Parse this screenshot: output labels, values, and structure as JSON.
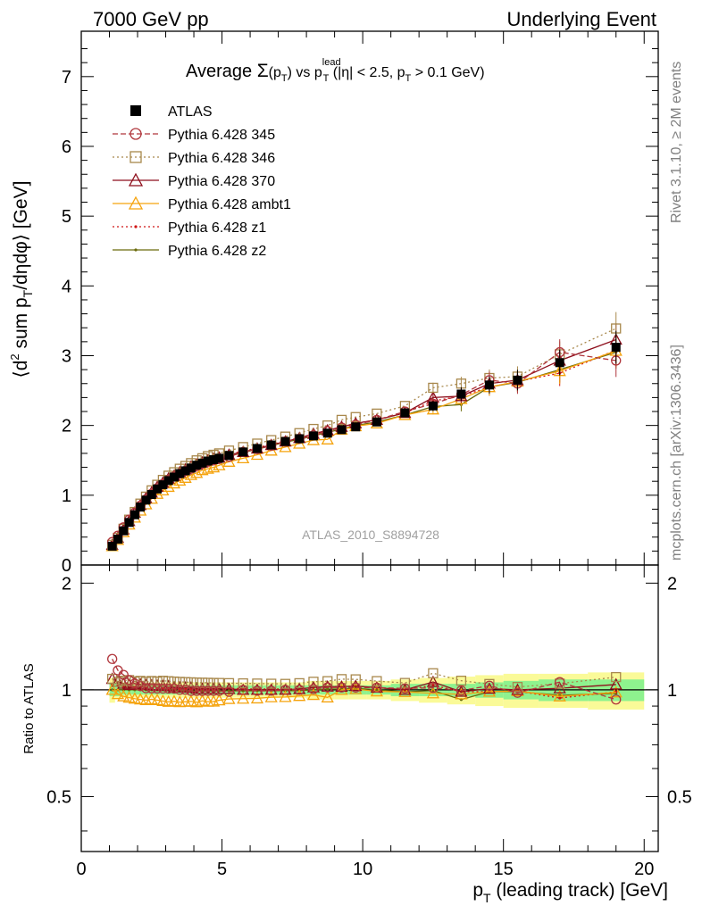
{
  "header": {
    "left": "7000 GeV pp",
    "right": "Underlying Event"
  },
  "side_labels": {
    "top": "Rivet 3.1.10, ≥ 2M events",
    "bottom": "mcplots.cern.ch [arXiv:1306.3436]"
  },
  "watermark": "ATLAS_2010_S8894728",
  "colors": {
    "band_inner": "#8ef28e",
    "band_outer": "#fafa98",
    "atlas": "#000000",
    "p345": "#b0363c",
    "p346": "#a8884c",
    "p370": "#8e0f1c",
    "ambt1": "#f5a30d",
    "z1": "#cf1414",
    "z2": "#6b6b0c"
  },
  "chart_data": [
    {
      "type": "line",
      "panel": "main",
      "title": "Average Σ(p_T) vs p_T^lead (|η| < 2.5, p_T > 0.1 GeV)",
      "xlabel": "p_T (leading track) [GeV]",
      "ylabel": "⟨d² sum p_T/dηdφ⟩ [GeV]",
      "xlim": [
        0,
        20.5
      ],
      "ylim": [
        0,
        7.65
      ],
      "xticks": [
        0,
        5,
        10,
        15,
        20
      ],
      "yticks": [
        0,
        1,
        2,
        3,
        4,
        5,
        6,
        7
      ],
      "legend": "top-left",
      "x": [
        1.1,
        1.3,
        1.5,
        1.7,
        1.9,
        2.1,
        2.3,
        2.5,
        2.7,
        2.9,
        3.1,
        3.3,
        3.5,
        3.7,
        3.9,
        4.1,
        4.3,
        4.5,
        4.7,
        4.9,
        5.25,
        5.75,
        6.25,
        6.75,
        7.25,
        7.75,
        8.25,
        8.75,
        9.25,
        9.75,
        10.5,
        11.5,
        12.5,
        13.5,
        14.5,
        15.5,
        17.0,
        19.0
      ],
      "series": [
        {
          "name": "ATLAS",
          "color": "atlas",
          "marker": "filled-square",
          "line": "none",
          "values": [
            0.27,
            0.37,
            0.49,
            0.61,
            0.72,
            0.83,
            0.93,
            1.01,
            1.09,
            1.15,
            1.21,
            1.26,
            1.31,
            1.35,
            1.39,
            1.43,
            1.46,
            1.49,
            1.51,
            1.53,
            1.57,
            1.62,
            1.67,
            1.72,
            1.77,
            1.81,
            1.85,
            1.89,
            1.94,
            1.98,
            2.05,
            2.18,
            2.28,
            2.45,
            2.58,
            2.65,
            2.9,
            3.12
          ]
        },
        {
          "name": "Pythia 6.428 345",
          "color": "p345",
          "marker": "open-circle",
          "line": "dashed",
          "values": [
            0.33,
            0.42,
            0.54,
            0.65,
            0.75,
            0.85,
            0.94,
            1.02,
            1.1,
            1.16,
            1.22,
            1.27,
            1.31,
            1.35,
            1.38,
            1.42,
            1.45,
            1.48,
            1.5,
            1.52,
            1.55,
            1.62,
            1.66,
            1.71,
            1.77,
            1.81,
            1.86,
            1.92,
            1.97,
            2.01,
            2.08,
            2.2,
            2.31,
            2.44,
            2.65,
            2.6,
            3.05,
            2.93
          ]
        },
        {
          "name": "Pythia 6.428 346",
          "color": "p346",
          "marker": "open-square",
          "line": "dotted",
          "values": [
            0.29,
            0.39,
            0.52,
            0.65,
            0.76,
            0.88,
            0.98,
            1.07,
            1.15,
            1.22,
            1.28,
            1.33,
            1.38,
            1.42,
            1.46,
            1.5,
            1.53,
            1.56,
            1.58,
            1.6,
            1.64,
            1.69,
            1.74,
            1.79,
            1.84,
            1.89,
            1.95,
            2.0,
            2.08,
            2.12,
            2.17,
            2.28,
            2.54,
            2.6,
            2.68,
            2.7,
            3.02,
            3.39
          ]
        },
        {
          "name": "Pythia 6.428 370",
          "color": "p370",
          "marker": "open-triangle",
          "line": "solid",
          "values": [
            0.29,
            0.39,
            0.51,
            0.63,
            0.75,
            0.86,
            0.96,
            1.04,
            1.12,
            1.18,
            1.24,
            1.28,
            1.33,
            1.37,
            1.41,
            1.44,
            1.47,
            1.5,
            1.52,
            1.54,
            1.58,
            1.62,
            1.67,
            1.72,
            1.77,
            1.82,
            1.88,
            1.93,
            1.98,
            2.03,
            2.08,
            2.18,
            2.4,
            2.42,
            2.6,
            2.65,
            2.93,
            3.23
          ]
        },
        {
          "name": "Pythia 6.428 ambt1",
          "color": "ambt1",
          "marker": "open-triangle",
          "line": "solid",
          "values": [
            0.27,
            0.36,
            0.47,
            0.58,
            0.68,
            0.78,
            0.87,
            0.95,
            1.02,
            1.07,
            1.12,
            1.17,
            1.21,
            1.25,
            1.29,
            1.32,
            1.36,
            1.38,
            1.4,
            1.43,
            1.48,
            1.53,
            1.58,
            1.64,
            1.69,
            1.74,
            1.79,
            1.8,
            1.94,
            1.99,
            2.03,
            2.15,
            2.23,
            2.38,
            2.55,
            2.63,
            2.78,
            3.07
          ]
        },
        {
          "name": "Pythia 6.428 z1",
          "color": "z1",
          "marker": "dot",
          "line": "dotted",
          "values": [
            0.28,
            0.38,
            0.5,
            0.62,
            0.73,
            0.84,
            0.94,
            1.02,
            1.1,
            1.16,
            1.22,
            1.27,
            1.32,
            1.36,
            1.4,
            1.44,
            1.47,
            1.5,
            1.52,
            1.55,
            1.59,
            1.63,
            1.68,
            1.73,
            1.78,
            1.82,
            1.88,
            1.93,
            1.98,
            2.03,
            2.08,
            2.18,
            2.35,
            2.42,
            2.55,
            2.63,
            2.75,
            3.08
          ]
        },
        {
          "name": "Pythia 6.428 z2",
          "color": "z2",
          "marker": "dot",
          "line": "solid",
          "values": [
            0.27,
            0.37,
            0.49,
            0.61,
            0.72,
            0.83,
            0.93,
            1.01,
            1.09,
            1.15,
            1.21,
            1.26,
            1.3,
            1.34,
            1.38,
            1.42,
            1.45,
            1.48,
            1.5,
            1.52,
            1.56,
            1.61,
            1.66,
            1.71,
            1.76,
            1.8,
            1.85,
            1.9,
            1.95,
            2.0,
            2.05,
            2.15,
            2.27,
            2.3,
            2.55,
            2.62,
            2.8,
            3.05
          ]
        }
      ]
    },
    {
      "type": "line",
      "panel": "ratio",
      "ylabel": "Ratio to ATLAS",
      "xlabel": "p_T (leading track) [GeV]",
      "ylim": [
        0.35,
        2.25
      ],
      "yticks": [
        0.5,
        1,
        2
      ],
      "reference_line": 1,
      "x": [
        1.1,
        1.3,
        1.5,
        1.7,
        1.9,
        2.1,
        2.3,
        2.5,
        2.7,
        2.9,
        3.1,
        3.3,
        3.5,
        3.7,
        3.9,
        4.1,
        4.3,
        4.5,
        4.7,
        4.9,
        5.25,
        5.75,
        6.25,
        6.75,
        7.25,
        7.75,
        8.25,
        8.75,
        9.25,
        9.75,
        10.5,
        11.5,
        12.5,
        13.5,
        14.5,
        15.5,
        17.0,
        19.0
      ],
      "bands": [
        {
          "name": "inner",
          "color": "band_inner",
          "half_width": [
            0.04,
            0.04,
            0.03,
            0.03,
            0.03,
            0.03,
            0.03,
            0.03,
            0.03,
            0.03,
            0.03,
            0.03,
            0.03,
            0.03,
            0.03,
            0.03,
            0.03,
            0.03,
            0.03,
            0.03,
            0.03,
            0.03,
            0.03,
            0.03,
            0.03,
            0.03,
            0.03,
            0.03,
            0.03,
            0.03,
            0.03,
            0.04,
            0.04,
            0.04,
            0.05,
            0.06,
            0.07,
            0.07
          ]
        },
        {
          "name": "outer",
          "color": "band_outer",
          "half_width": [
            0.08,
            0.06,
            0.05,
            0.05,
            0.05,
            0.05,
            0.05,
            0.05,
            0.05,
            0.05,
            0.05,
            0.05,
            0.05,
            0.05,
            0.05,
            0.05,
            0.05,
            0.05,
            0.05,
            0.05,
            0.05,
            0.05,
            0.05,
            0.05,
            0.05,
            0.05,
            0.06,
            0.06,
            0.06,
            0.06,
            0.06,
            0.07,
            0.08,
            0.09,
            0.1,
            0.11,
            0.11,
            0.12
          ]
        }
      ]
    }
  ]
}
